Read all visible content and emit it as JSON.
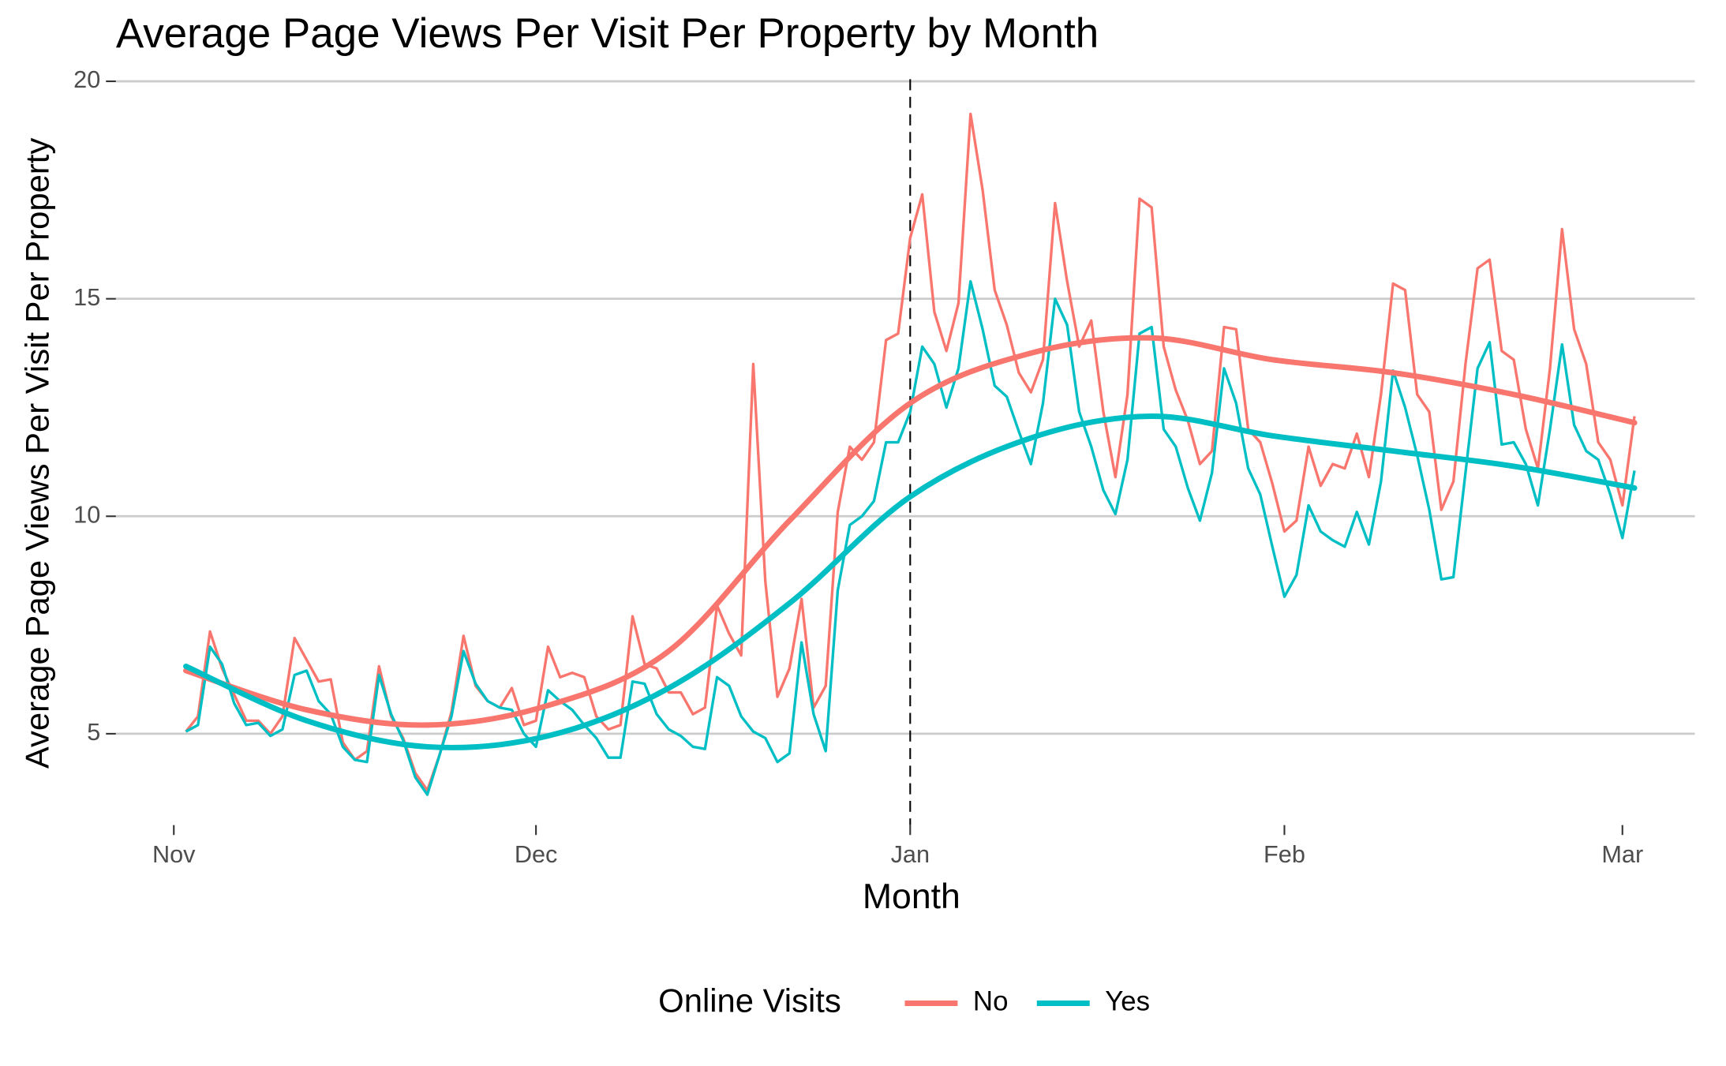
{
  "chart_data": {
    "type": "line",
    "title": "Average Page Views Per Visit Per Property by Month",
    "x_label": "Month",
    "y_label": "Average Page Views Per Visit Per Property",
    "legend_title": "Online Visits",
    "legend": "bottom",
    "grid": true,
    "xlim": [
      -4.8,
      126
    ],
    "xticks": [
      {
        "value": 0,
        "label": "Nov"
      },
      {
        "value": 30,
        "label": "Dec"
      },
      {
        "value": 61,
        "label": "Jan"
      },
      {
        "value": 92,
        "label": "Feb"
      },
      {
        "value": 120,
        "label": "Mar"
      }
    ],
    "ylim": [
      2.9,
      20.2
    ],
    "yticks": [
      5,
      10,
      15,
      20
    ],
    "vline": 61,
    "x": [
      1,
      2,
      3,
      4,
      5,
      6,
      7,
      8,
      9,
      10,
      11,
      12,
      13,
      14,
      15,
      16,
      17,
      18,
      19,
      20,
      21,
      22,
      23,
      24,
      25,
      26,
      27,
      28,
      29,
      30,
      31,
      32,
      33,
      34,
      35,
      36,
      37,
      38,
      39,
      40,
      41,
      42,
      43,
      44,
      45,
      46,
      47,
      48,
      49,
      50,
      51,
      52,
      53,
      54,
      55,
      56,
      57,
      58,
      59,
      60,
      61,
      62,
      63,
      64,
      65,
      66,
      67,
      68,
      69,
      70,
      71,
      72,
      73,
      74,
      75,
      76,
      77,
      78,
      79,
      80,
      81,
      82,
      83,
      84,
      85,
      86,
      87,
      88,
      89,
      90,
      91,
      92,
      93,
      94,
      95,
      96,
      97,
      98,
      99,
      100,
      101,
      102,
      103,
      104,
      105,
      106,
      107,
      108,
      109,
      110,
      111,
      112,
      113,
      114,
      115,
      116,
      117,
      118,
      119,
      120,
      121
    ],
    "trend_x": [
      1,
      11,
      21,
      31,
      41,
      51,
      61,
      71,
      81,
      91,
      101,
      111,
      121
    ],
    "series": [
      {
        "name": "No",
        "color": "#f8766d",
        "values": [
          5.05,
          5.4,
          7.35,
          6.5,
          5.9,
          5.3,
          5.3,
          5.0,
          5.4,
          7.2,
          6.7,
          6.2,
          6.25,
          4.8,
          4.4,
          4.6,
          6.55,
          5.4,
          4.9,
          4.1,
          3.7,
          4.5,
          5.5,
          7.25,
          6.1,
          5.75,
          5.6,
          6.05,
          5.2,
          5.3,
          7.0,
          6.3,
          6.4,
          6.3,
          5.4,
          5.1,
          5.2,
          7.7,
          6.6,
          6.5,
          5.95,
          5.95,
          5.45,
          5.6,
          7.95,
          7.3,
          6.8,
          13.5,
          8.5,
          5.85,
          6.5,
          8.1,
          5.6,
          6.1,
          10.1,
          11.6,
          11.3,
          11.7,
          14.05,
          14.2,
          16.4,
          17.4,
          14.7,
          13.8,
          14.9,
          19.25,
          17.5,
          15.2,
          14.4,
          13.3,
          12.85,
          13.6,
          17.2,
          15.4,
          13.9,
          14.5,
          12.4,
          10.9,
          12.8,
          17.3,
          17.1,
          13.9,
          12.9,
          12.2,
          11.2,
          11.5,
          14.35,
          14.3,
          12.0,
          11.7,
          10.75,
          9.65,
          9.9,
          11.6,
          10.7,
          11.2,
          11.1,
          11.9,
          10.9,
          12.8,
          15.35,
          15.2,
          12.8,
          12.4,
          10.15,
          10.8,
          13.5,
          15.7,
          15.9,
          13.8,
          13.6,
          12.0,
          11.1,
          13.4,
          16.6,
          14.3,
          13.5,
          11.7,
          11.3,
          10.25,
          12.3
        ],
        "trend": [
          6.45,
          5.55,
          5.2,
          5.65,
          6.9,
          9.9,
          12.6,
          13.75,
          14.1,
          13.6,
          13.3,
          12.8,
          12.15
        ]
      },
      {
        "name": "Yes",
        "color": "#00bfc4",
        "values": [
          5.05,
          5.2,
          7.0,
          6.6,
          5.7,
          5.2,
          5.25,
          4.95,
          5.1,
          6.35,
          6.45,
          5.75,
          5.45,
          4.7,
          4.4,
          4.35,
          6.35,
          5.45,
          4.85,
          4.0,
          3.6,
          4.5,
          5.4,
          6.9,
          6.15,
          5.75,
          5.6,
          5.55,
          5.0,
          4.7,
          6.0,
          5.75,
          5.55,
          5.2,
          4.9,
          4.45,
          4.45,
          6.2,
          6.15,
          5.45,
          5.1,
          4.95,
          4.7,
          4.65,
          6.3,
          6.1,
          5.4,
          5.05,
          4.9,
          4.35,
          4.55,
          7.1,
          5.45,
          4.6,
          8.3,
          9.8,
          10.0,
          10.35,
          11.7,
          11.7,
          12.4,
          13.9,
          13.5,
          12.5,
          13.4,
          15.4,
          14.3,
          13.0,
          12.75,
          11.95,
          11.2,
          12.6,
          15.0,
          14.4,
          12.4,
          11.6,
          10.6,
          10.05,
          11.3,
          14.2,
          14.35,
          12.0,
          11.6,
          10.65,
          9.9,
          11.0,
          13.4,
          12.6,
          11.1,
          10.5,
          9.3,
          8.15,
          8.65,
          10.25,
          9.65,
          9.45,
          9.3,
          10.1,
          9.35,
          10.8,
          13.35,
          12.5,
          11.4,
          10.15,
          8.55,
          8.6,
          11.0,
          13.4,
          14.0,
          11.65,
          11.7,
          11.2,
          10.25,
          12.0,
          13.95,
          12.1,
          11.5,
          11.3,
          10.5,
          9.5,
          11.05
        ],
        "trend": [
          6.55,
          5.3,
          4.7,
          4.95,
          6.05,
          8.0,
          10.45,
          11.8,
          12.3,
          11.85,
          11.5,
          11.15,
          10.65
        ]
      }
    ]
  }
}
